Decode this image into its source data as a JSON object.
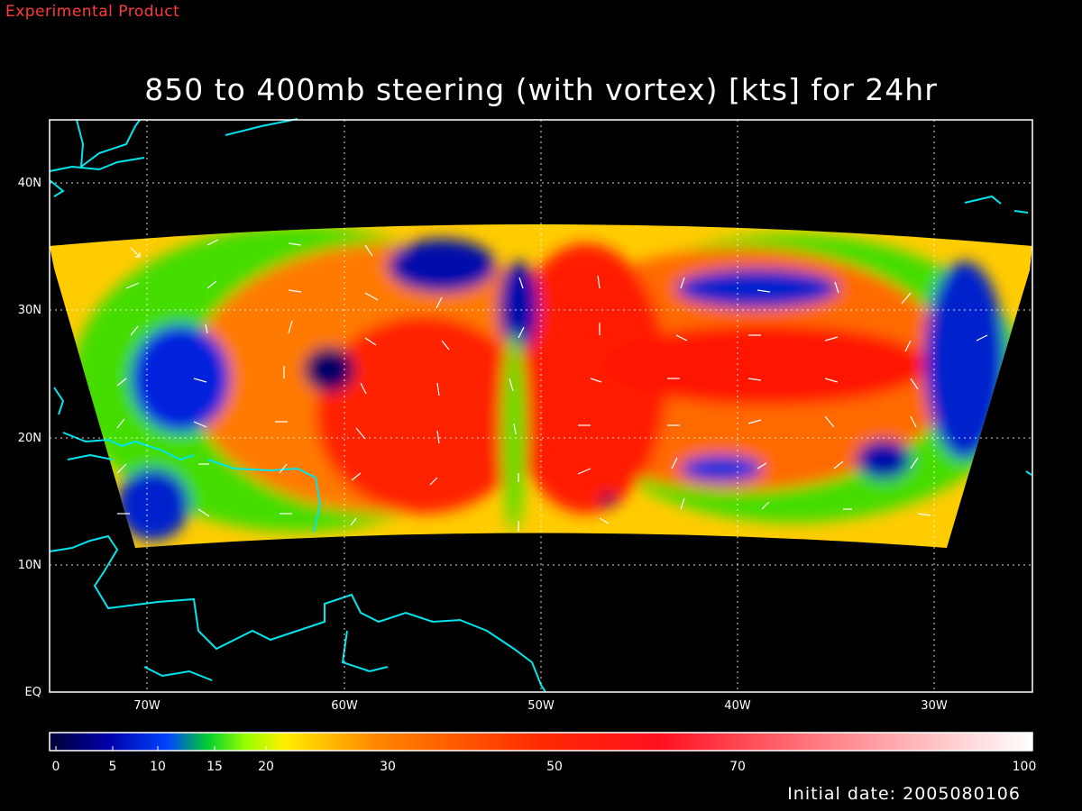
{
  "header": {
    "product_tag": "Experimental Product",
    "title": "850 to 400mb steering (with vortex) [kts] for 24hr"
  },
  "map": {
    "lat_labels": [
      "40N",
      "30N",
      "20N",
      "10N",
      "EQ"
    ],
    "lon_labels": [
      "70W",
      "60W",
      "50W",
      "40W",
      "30W"
    ],
    "coastline_color": "#00e5ee",
    "grid": true
  },
  "colorbar": {
    "labels": [
      "0",
      "5",
      "10",
      "15",
      "20",
      "30",
      "50",
      "70",
      "100"
    ],
    "colors": [
      "#000033",
      "#0000ff",
      "#00ff00",
      "#ffff00",
      "#ff8800",
      "#ff0000",
      "#ffffff"
    ]
  },
  "footer": {
    "initial_date": "Initial date: 2005080106"
  },
  "colors": {
    "product_tag": "#ff3a3a",
    "background": "#000000"
  }
}
